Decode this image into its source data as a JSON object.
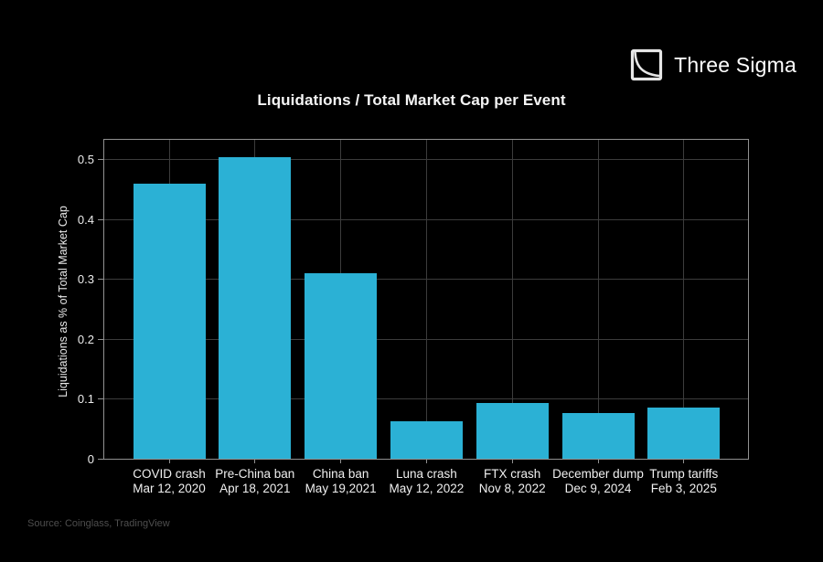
{
  "logo": {
    "text": "Three Sigma"
  },
  "title": "Liquidations / Total Market Cap per Event",
  "source": "Source: Coinglass, TradingView",
  "chart_data": {
    "type": "bar",
    "title": "Liquidations / Total Market Cap per Event",
    "xlabel": "",
    "ylabel": "Liquidations as % of Total Market Cap",
    "categories": [
      "COVID crash",
      "Pre-China ban",
      "China ban",
      "Luna crash",
      "FTX crash",
      "December dump",
      "Trump tariffs"
    ],
    "category_dates": [
      "Mar 12, 2020",
      "Apr 18, 2021",
      "May 19,2021",
      "May 12, 2022",
      "Nov 8, 2022",
      "Dec 9, 2024",
      "Feb 3, 2025"
    ],
    "values": [
      0.46,
      0.505,
      0.31,
      0.062,
      0.093,
      0.076,
      0.086
    ],
    "ytick_labels": [
      "0",
      "0.1",
      "0.2",
      "0.3",
      "0.4",
      "0.5"
    ],
    "ytick_values": [
      0,
      0.1,
      0.2,
      0.3,
      0.4,
      0.5
    ],
    "ylim": [
      0,
      0.5335
    ],
    "grid": {
      "horizontal": true,
      "vertical": true
    },
    "legend": "none",
    "colors": {
      "bar": "#2bb1d5",
      "grid": "#3c3c3c",
      "axis_border": "#919191",
      "background": "#000000",
      "text": "#f2f2f2",
      "source_text": "#4e4e4e"
    }
  }
}
